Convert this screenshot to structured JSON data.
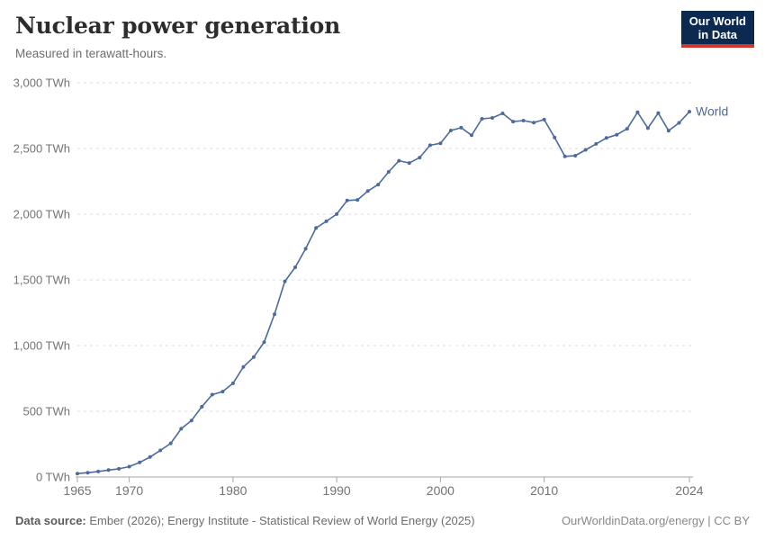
{
  "header": {
    "title": "Nuclear power generation",
    "subtitle": "Measured in terawatt-hours.",
    "logo_line1": "Our World",
    "logo_line2": "in Data"
  },
  "footer": {
    "source_label": "Data source:",
    "source_text": " Ember (2026); Energy Institute - Statistical Review of World Energy (2025)",
    "right_text": "OurWorldinData.org/energy | CC BY"
  },
  "colors": {
    "series": "#4c6a9c",
    "gridline": "#dddddd",
    "axis": "#a6a6a6",
    "tick_label": "#737373",
    "logo_bg": "#0c2a50",
    "logo_red": "#d1352b"
  },
  "chart_data": {
    "type": "line",
    "title": "Nuclear power generation",
    "subtitle": "Measured in terawatt-hours.",
    "unit": "TWh",
    "xlim": [
      1965,
      2024
    ],
    "ylim": [
      0,
      3000
    ],
    "grid": "dashed-horizontal",
    "legend_position": "end-of-line",
    "x_ticks": [
      {
        "year": 1965,
        "label": "1965"
      },
      {
        "year": 1970,
        "label": "1970"
      },
      {
        "year": 1980,
        "label": "1980"
      },
      {
        "year": 1990,
        "label": "1990"
      },
      {
        "year": 2000,
        "label": "2000"
      },
      {
        "year": 2010,
        "label": "2010"
      },
      {
        "year": 2024,
        "label": "2024"
      }
    ],
    "y_ticks": [
      {
        "value": 0,
        "label": "0 TWh"
      },
      {
        "value": 500,
        "label": "500 TWh"
      },
      {
        "value": 1000,
        "label": "1,000 TWh"
      },
      {
        "value": 1500,
        "label": "1,500 TWh"
      },
      {
        "value": 2000,
        "label": "2,000 TWh"
      },
      {
        "value": 2500,
        "label": "2,500 TWh"
      },
      {
        "value": 3000,
        "label": "3,000 TWh"
      }
    ],
    "series": [
      {
        "name": "World",
        "color": "#4c6a9c",
        "x": [
          1965,
          1966,
          1967,
          1968,
          1969,
          1970,
          1971,
          1972,
          1973,
          1974,
          1975,
          1976,
          1977,
          1978,
          1979,
          1980,
          1981,
          1982,
          1983,
          1984,
          1985,
          1986,
          1987,
          1988,
          1989,
          1990,
          1991,
          1992,
          1993,
          1994,
          1995,
          1996,
          1997,
          1998,
          1999,
          2000,
          2001,
          2002,
          2003,
          2004,
          2005,
          2006,
          2007,
          2008,
          2009,
          2010,
          2011,
          2012,
          2013,
          2014,
          2015,
          2016,
          2017,
          2018,
          2019,
          2020,
          2021,
          2022,
          2023,
          2024
        ],
        "values": [
          26,
          33,
          42,
          53,
          62,
          79,
          111,
          152,
          203,
          256,
          367,
          430,
          535,
          627,
          650,
          713,
          838,
          912,
          1026,
          1239,
          1489,
          1596,
          1737,
          1895,
          1946,
          2001,
          2104,
          2109,
          2176,
          2225,
          2322,
          2407,
          2390,
          2431,
          2525,
          2540,
          2637,
          2658,
          2601,
          2726,
          2733,
          2767,
          2705,
          2712,
          2697,
          2720,
          2584,
          2440,
          2445,
          2490,
          2535,
          2580,
          2605,
          2650,
          2775,
          2655,
          2770,
          2635,
          2695,
          2780
        ]
      }
    ]
  }
}
